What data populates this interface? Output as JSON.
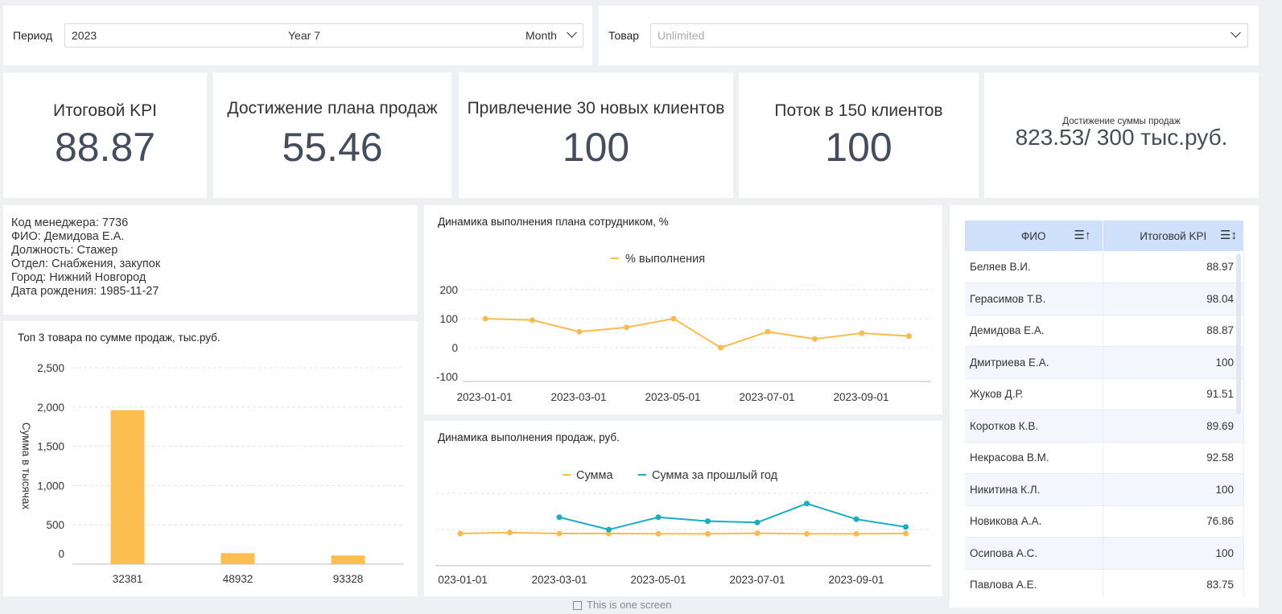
{
  "filters": {
    "period_label": "Период",
    "period_value": "2023",
    "period_mode": "Year 7",
    "period_unit": "Month",
    "product_label": "Товар",
    "product_placeholder": "Unlimited"
  },
  "kpis": [
    {
      "title": "Итоговой KPI",
      "value": "88.87"
    },
    {
      "title": "Достижение плана продаж",
      "value": "55.46"
    },
    {
      "title": "Привлечение 30 новых клиентов",
      "value": "100"
    },
    {
      "title": "Поток в 150 клиентов",
      "value": "100"
    }
  ],
  "sales_kpi": {
    "title": "Достижение суммы продаж",
    "value": "823.53/ 300 тыс.руб."
  },
  "manager": {
    "code": "Код менеджера: 7736",
    "fio": "ФИО: Демидова Е.А.",
    "position": "Должность: Стажер",
    "department": "Отдел: Снабжения, закупок",
    "city": "Город: Нижний Новгород",
    "birth": "Дата рождения: 1985-11-27"
  },
  "chart_data": [
    {
      "type": "bar",
      "title": "Топ 3 товара по сумме продаж, тыс.руб.",
      "ylabel": "Сумма в тысячах",
      "categories": [
        "32381",
        "48932",
        "93328"
      ],
      "values": [
        1960,
        140,
        110
      ],
      "ylim": [
        0,
        2500
      ],
      "yticks": [
        "0",
        "500",
        "1,000",
        "1,500",
        "2,000",
        "2,500"
      ],
      "color": "#fcbf4f"
    },
    {
      "type": "line",
      "title": "Динамика выполнения плана сотрудником, %",
      "series": [
        {
          "name": "% выполнения",
          "color": "#f9bb4e",
          "x": [
            "2023-01-01",
            "2023-02-01",
            "2023-03-01",
            "2023-04-01",
            "2023-05-01",
            "2023-06-01",
            "2023-07-01",
            "2023-08-01",
            "2023-09-01",
            "2023-10-01"
          ],
          "values": [
            100,
            95,
            55,
            70,
            100,
            0,
            55,
            30,
            50,
            40
          ]
        }
      ],
      "ylim": [
        -100,
        200
      ],
      "yticks": [
        "-100",
        "0",
        "100",
        "200"
      ],
      "xticks": [
        "2023-01-01",
        "2023-03-01",
        "2023-05-01",
        "2023-07-01",
        "2023-09-01"
      ]
    },
    {
      "type": "line",
      "title": "Динамика выполнения продаж, руб.",
      "series": [
        {
          "name": "Сумма",
          "color": "#f9bb4e",
          "x": [
            "2023-01-01",
            "2023-02-01",
            "2023-03-01",
            "2023-04-01",
            "2023-05-01",
            "2023-06-01",
            "2023-07-01",
            "2023-08-01",
            "2023-09-01",
            "2023-10-01"
          ],
          "values": [
            100,
            115,
            100,
            100,
            95,
            95,
            105,
            95,
            95,
            100
          ]
        },
        {
          "name": "Сумма за прошлый год",
          "color": "#17aec3",
          "x": [
            "2023-03-01",
            "2023-04-01",
            "2023-05-01",
            "2023-06-01",
            "2023-07-01",
            "2023-08-01",
            "2023-09-01",
            "2023-10-01"
          ],
          "values": [
            350,
            160,
            350,
            290,
            270,
            560,
            320,
            200
          ]
        }
      ],
      "xticks": [
        "023-01-01",
        "2023-03-01",
        "2023-05-01",
        "2023-07-01",
        "2023-09-01"
      ]
    }
  ],
  "table": {
    "col_fio": "ФИО",
    "col_kpi": "Итоговой KPI",
    "rows": [
      {
        "fio": "Беляев В.И.",
        "kpi": "88.97"
      },
      {
        "fio": "Герасимов Т.В.",
        "kpi": "98.04"
      },
      {
        "fio": "Демидова Е.А.",
        "kpi": "88.87"
      },
      {
        "fio": "Дмитриева Е.А.",
        "kpi": "100"
      },
      {
        "fio": "Жуков Д.Р.",
        "kpi": "91.51"
      },
      {
        "fio": "Коротков К.В.",
        "kpi": "89.69"
      },
      {
        "fio": "Некрасова В.М.",
        "kpi": "92.58"
      },
      {
        "fio": "Никитина К.Л.",
        "kpi": "100"
      },
      {
        "fio": "Новикова А.А.",
        "kpi": "76.86"
      },
      {
        "fio": "Осипова А.С.",
        "kpi": "100"
      },
      {
        "fio": "Павлова А.Е.",
        "kpi": "83.75"
      }
    ]
  },
  "footer_note": "This is one screen"
}
